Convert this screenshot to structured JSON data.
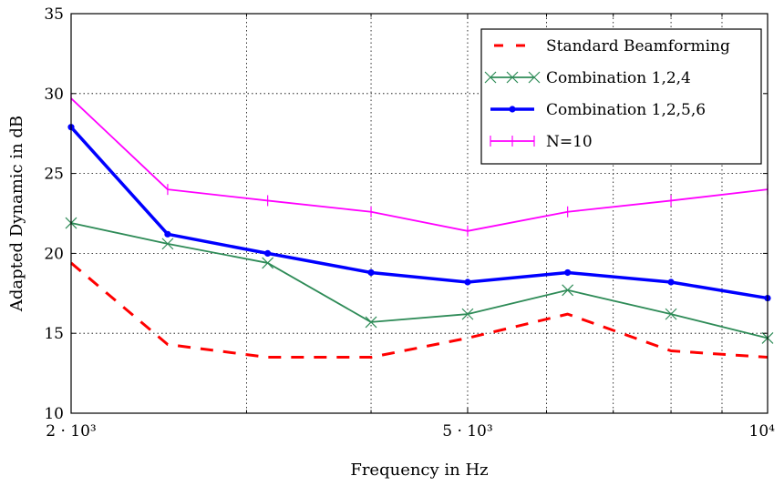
{
  "chart_data": {
    "type": "line",
    "title": "",
    "xlabel": "Frequency in Hz",
    "ylabel": "Adapted Dynamic in dB",
    "xscale": "log",
    "xlim": [
      2000,
      10000
    ],
    "ylim": [
      10,
      35
    ],
    "grid": true,
    "legend_position": "top-right",
    "x": [
      2000,
      2500,
      3150,
      4000,
      5000,
      6300,
      8000,
      10000
    ],
    "x_tick_labels": [
      "2 · 10³",
      "5 · 10³",
      "10⁴"
    ],
    "x_tick_values": [
      2000,
      5000,
      10000
    ],
    "y_tick_values": [
      10,
      15,
      20,
      25,
      30,
      35
    ],
    "y_tick_labels": [
      "10",
      "15",
      "20",
      "25",
      "30",
      "35"
    ],
    "series": [
      {
        "name": "Standard Beamforming",
        "color": "#ff0000",
        "style": "dashed",
        "marker": "none",
        "values": [
          19.4,
          14.3,
          13.5,
          13.5,
          14.7,
          16.2,
          13.9,
          13.5
        ]
      },
      {
        "name": "Combination 1,2,4",
        "color": "#2e8b57",
        "style": "solid",
        "marker": "x",
        "values": [
          21.9,
          20.6,
          19.4,
          15.7,
          16.2,
          17.7,
          16.2,
          14.7
        ]
      },
      {
        "name": "Combination 1,2,5,6",
        "color": "#0000ff",
        "style": "solid-thick",
        "marker": "dot",
        "values": [
          27.9,
          21.2,
          20.0,
          18.8,
          18.2,
          18.8,
          18.2,
          17.2
        ]
      },
      {
        "name": "N=10",
        "color": "#ff00ff",
        "style": "solid",
        "marker": "vline",
        "values": [
          29.7,
          24.0,
          23.3,
          22.6,
          21.4,
          22.6,
          23.3,
          24.0
        ]
      }
    ]
  }
}
